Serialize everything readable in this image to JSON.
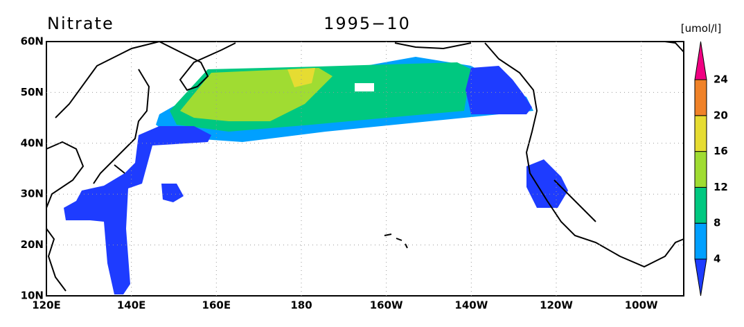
{
  "title": "Nitrate",
  "date": "1995−10",
  "axes": {
    "y_labels": [
      "60N",
      "50N",
      "40N",
      "30N",
      "20N",
      "10N"
    ],
    "x_labels": [
      "120E",
      "140E",
      "160E",
      "180",
      "160W",
      "140W",
      "120W",
      "100W"
    ]
  },
  "colorbar": {
    "unit": "[umol/l]",
    "levels": [
      4,
      8,
      12,
      16,
      20,
      24
    ],
    "colors": [
      "#1e3cff",
      "#00a0ff",
      "#00c880",
      "#a0dc32",
      "#e6dc32",
      "#f08228",
      "#f00082"
    ]
  }
}
